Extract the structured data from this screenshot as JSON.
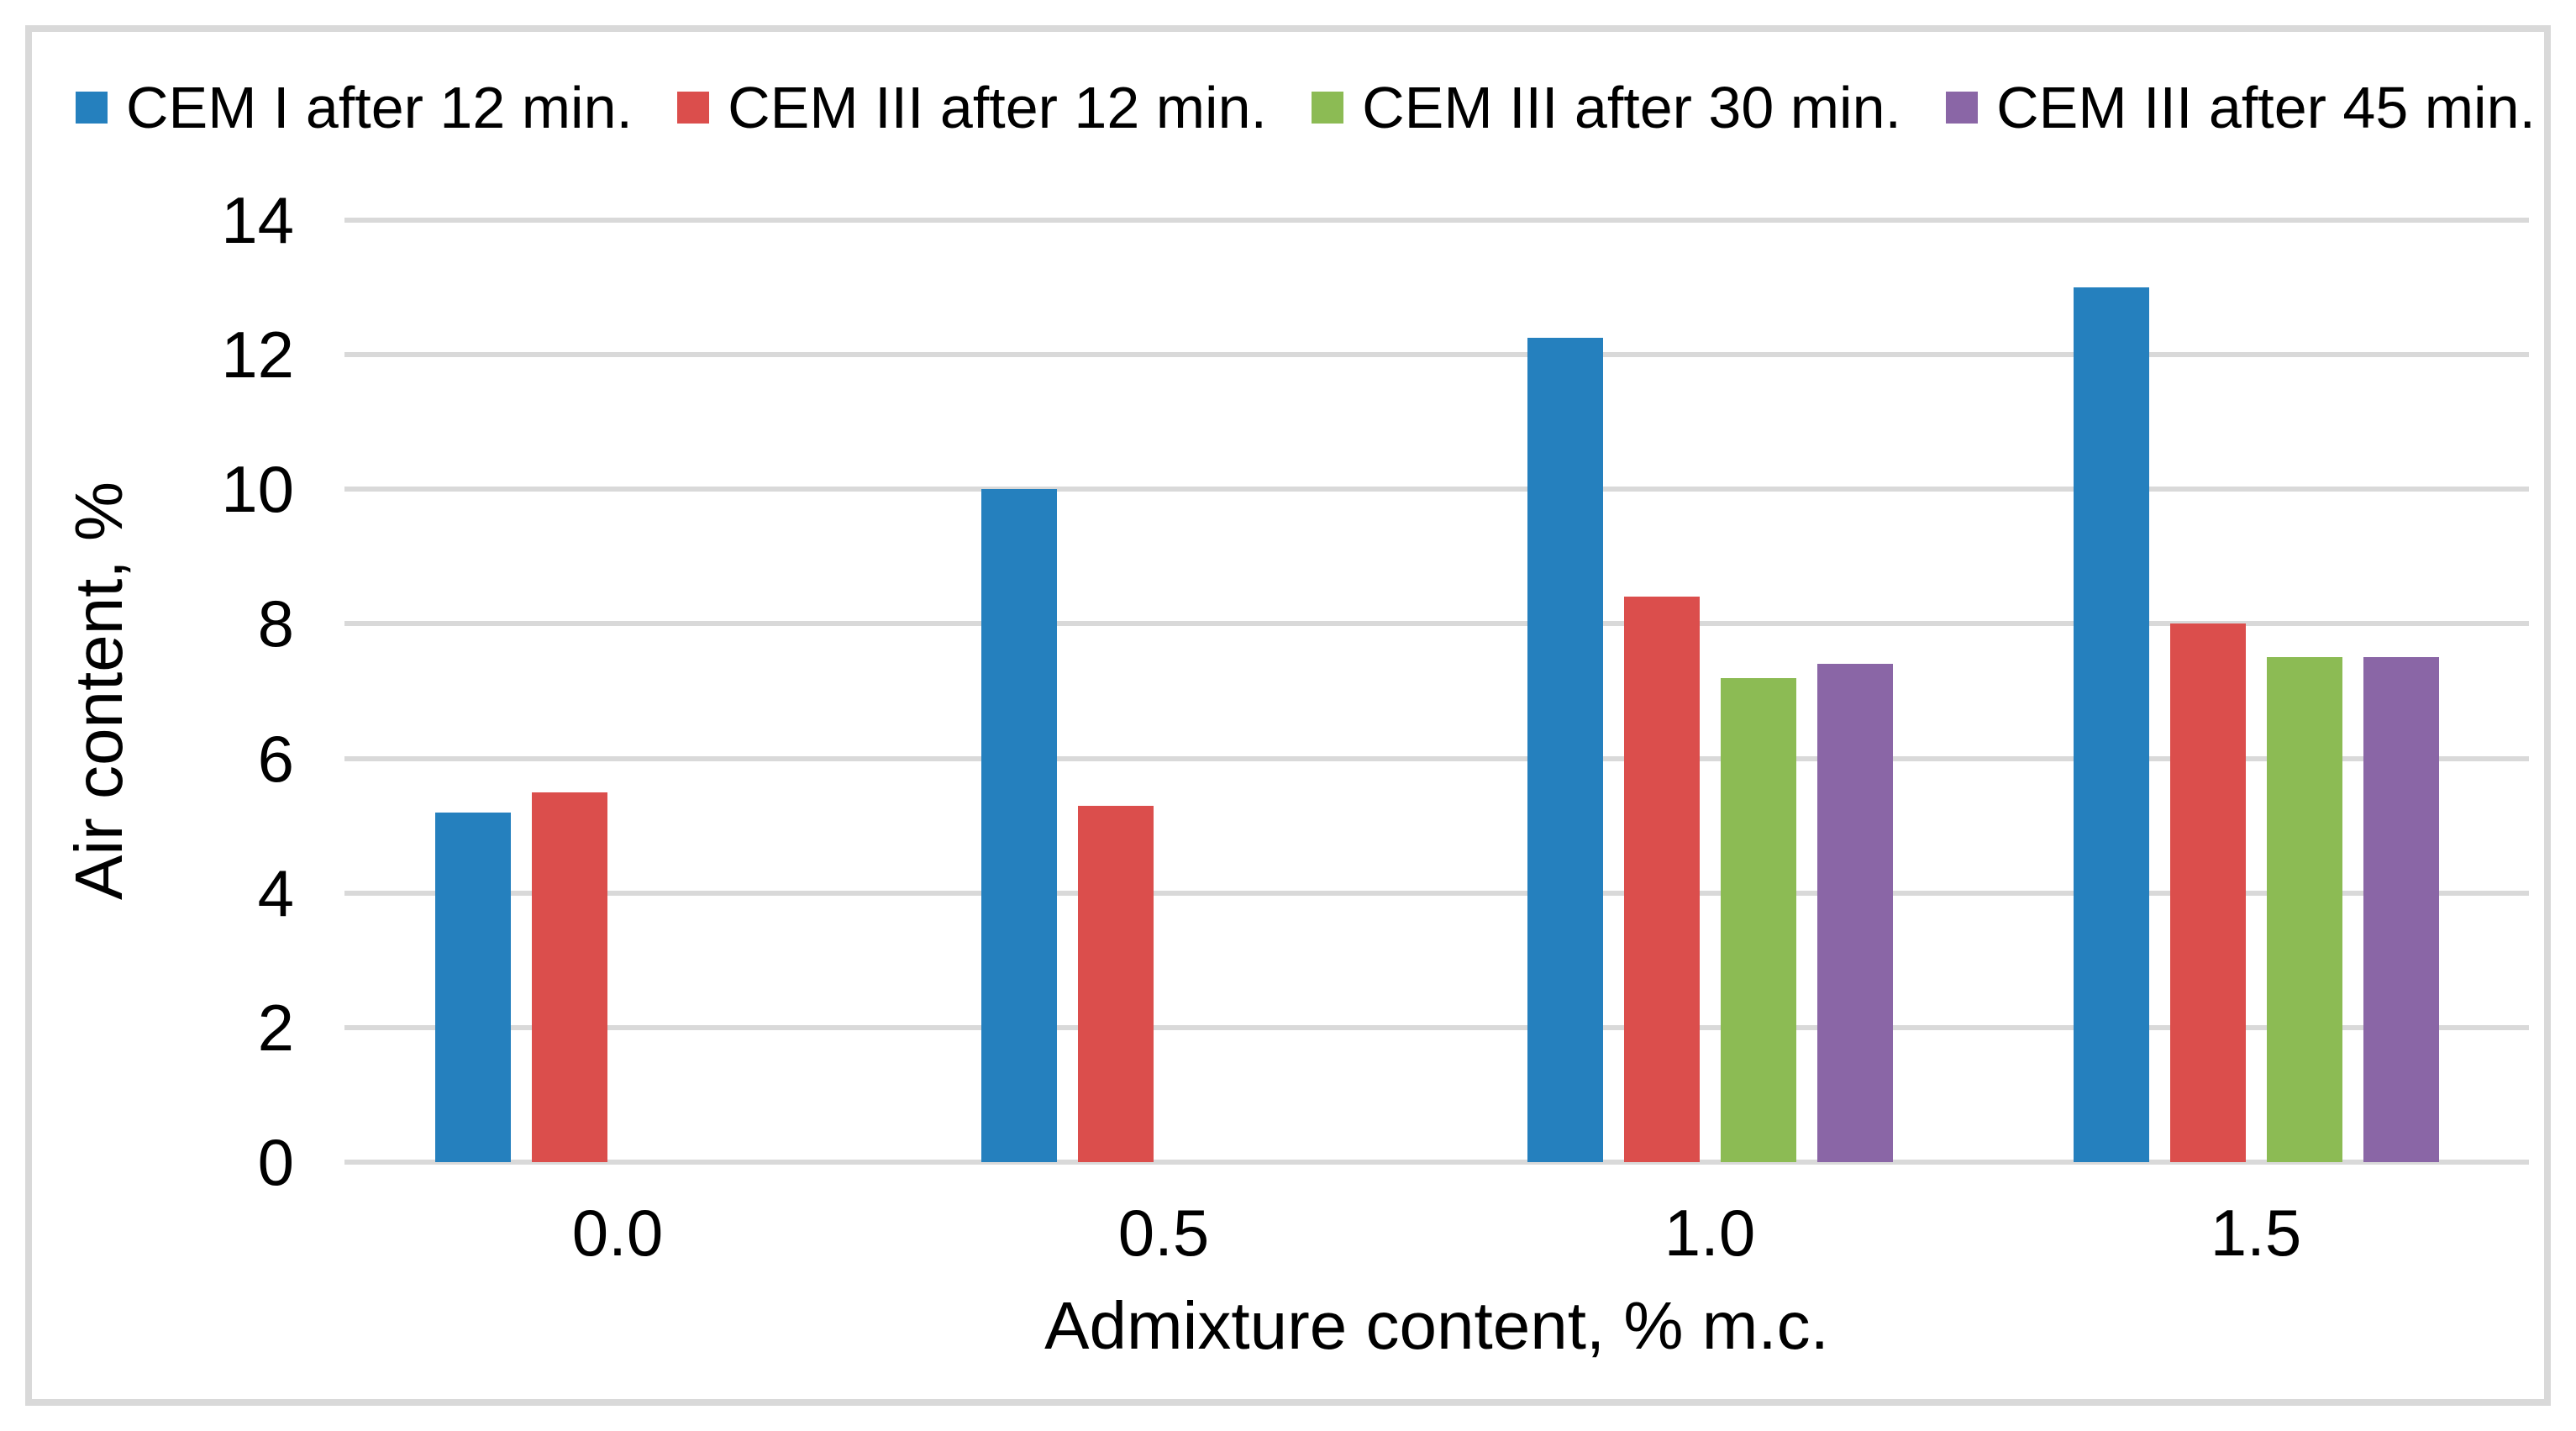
{
  "chart_data": {
    "type": "bar",
    "title": "",
    "categories": [
      "0.0",
      "0.5",
      "1.0",
      "1.5"
    ],
    "series": [
      {
        "name": "CEM I after 12 min.",
        "color": "#2580BE",
        "values": [
          5.2,
          10.0,
          12.25,
          13.0
        ]
      },
      {
        "name": "CEM III after 12 min.",
        "color": "#DB4E4C",
        "values": [
          5.5,
          5.3,
          8.4,
          8.0
        ]
      },
      {
        "name": "CEM III after 30 min.",
        "color": "#8CBB54",
        "values": [
          null,
          null,
          7.2,
          7.5
        ]
      },
      {
        "name": "CEM III after 45 min.",
        "color": "#8A66A6",
        "values": [
          null,
          null,
          7.4,
          7.5
        ]
      }
    ],
    "xlabel": "Admixture content, % m.c.",
    "ylabel": "Air content, %",
    "ylim": [
      0,
      14
    ],
    "ytick_step": 2,
    "grid": true,
    "legend_position": "top",
    "gridline_color": "#D9D9D9",
    "frame_color": "#D9D9D9",
    "background": "#FFFFFF",
    "text_color": "#000000"
  }
}
